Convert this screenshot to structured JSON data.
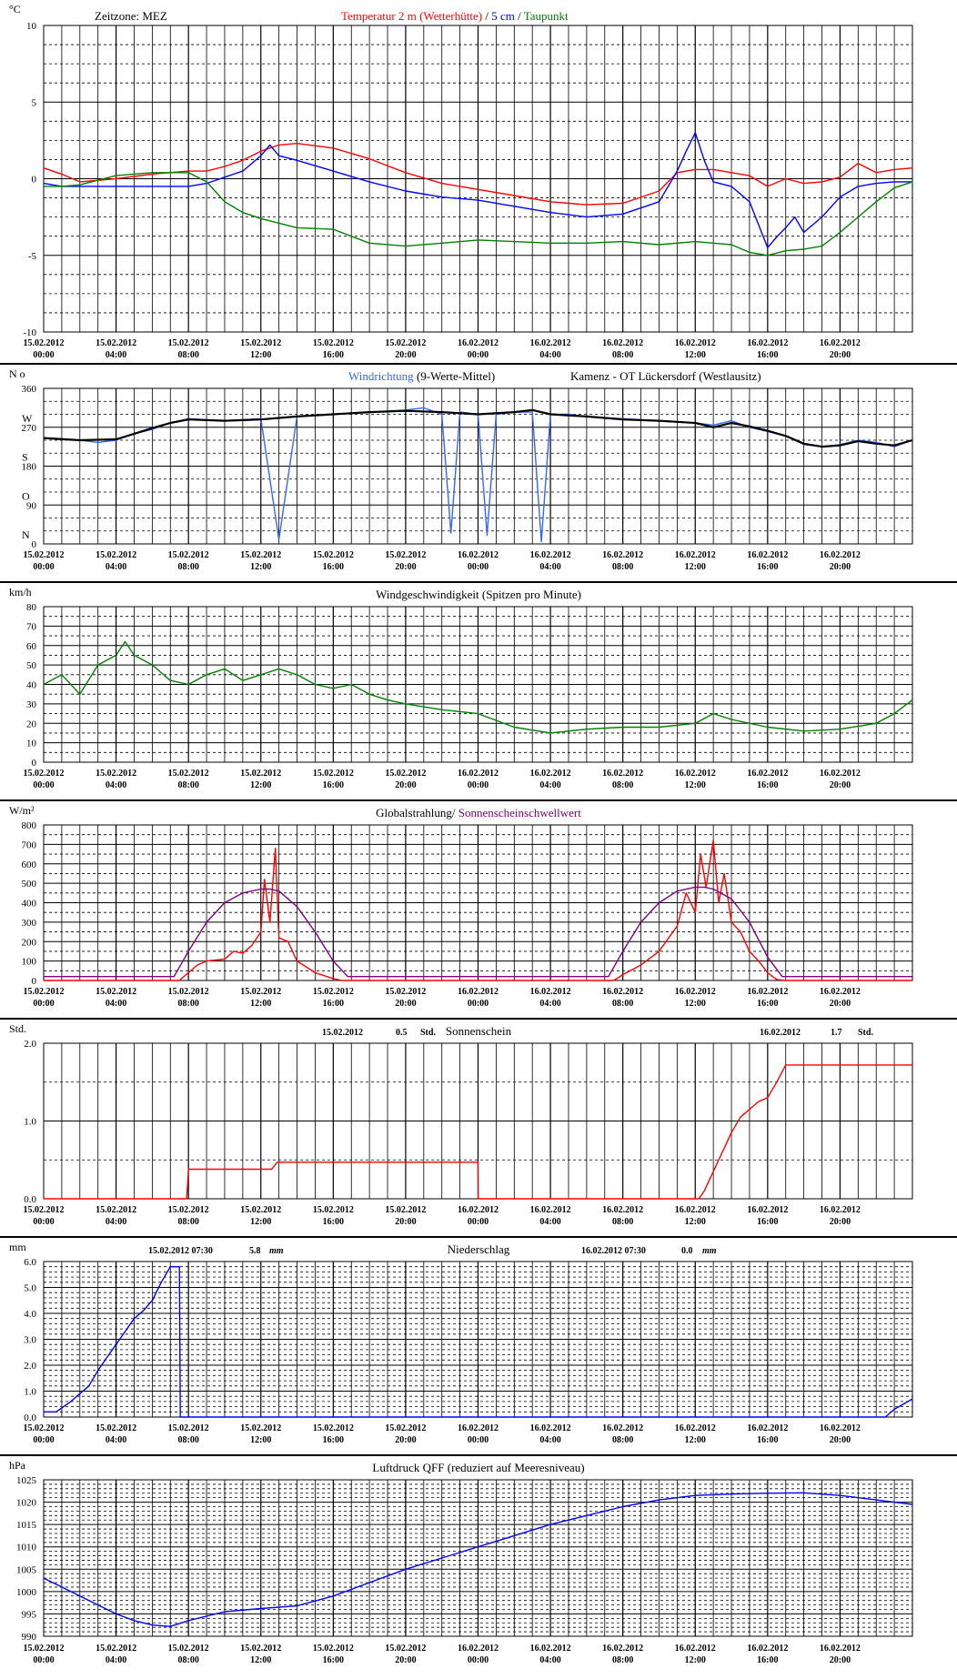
{
  "x_axis": {
    "ticks": [
      {
        "d": "15.02.2012",
        "t": "00:00"
      },
      {
        "d": "15.02.2012",
        "t": "04:00"
      },
      {
        "d": "15.02.2012",
        "t": "08:00"
      },
      {
        "d": "15.02.2012",
        "t": "12:00"
      },
      {
        "d": "15.02.2012",
        "t": "16:00"
      },
      {
        "d": "15.02.2012",
        "t": "20:00"
      },
      {
        "d": "16.02.2012",
        "t": "00:00"
      },
      {
        "d": "16.02.2012",
        "t": "04:00"
      },
      {
        "d": "16.02.2012",
        "t": "08:00"
      },
      {
        "d": "16.02.2012",
        "t": "12:00"
      },
      {
        "d": "16.02.2012",
        "t": "16:00"
      },
      {
        "d": "16.02.2012",
        "t": "20:00"
      }
    ]
  },
  "chart_data": [
    {
      "id": "temperature",
      "type": "line",
      "unit": "°C",
      "header_left": "Zeitzone: MEZ",
      "title_parts": [
        {
          "text": "Temperatur 2 m (Wetterhütte)",
          "color": "#ff0000"
        },
        {
          "text": "  /  ",
          "color": "#000000"
        },
        {
          "text": "5 cm",
          "color": "#0000ff"
        },
        {
          "text": " / ",
          "color": "#000000"
        },
        {
          "text": "Taupunkt",
          "color": "#008000"
        }
      ],
      "ylim": [
        -10,
        10
      ],
      "yticks": [
        10,
        5,
        0,
        -5,
        -10
      ],
      "xlim_hours": [
        0,
        48
      ],
      "series": [
        {
          "name": "Temperatur 2 m (Wetterhütte)",
          "color": "#ff0000",
          "x": [
            0,
            1,
            2,
            4,
            6,
            8,
            9,
            10,
            11,
            12,
            13,
            14,
            16,
            18,
            20,
            22,
            24,
            26,
            28,
            30,
            32,
            34,
            35,
            36,
            37,
            37.5,
            38,
            39,
            40,
            41,
            42,
            43,
            44,
            45,
            46,
            47,
            48
          ],
          "y": [
            0.7,
            0.3,
            -0.2,
            0,
            0.3,
            0.5,
            0.5,
            0.8,
            1.2,
            1.8,
            2.2,
            2.3,
            2.0,
            1.3,
            0.4,
            -0.3,
            -0.7,
            -1.1,
            -1.5,
            -1.7,
            -1.6,
            -0.8,
            0.4,
            0.6,
            0.6,
            0.5,
            0.4,
            0.2,
            -0.5,
            0.0,
            -0.3,
            -0.2,
            0.1,
            1.0,
            0.4,
            0.6,
            0.7
          ]
        },
        {
          "name": "5 cm",
          "color": "#0000ff",
          "x": [
            0,
            1,
            2,
            3,
            4,
            6,
            8,
            9,
            10,
            11,
            12,
            12.5,
            13,
            14,
            16,
            18,
            20,
            22,
            24,
            26,
            28,
            30,
            32,
            34,
            35,
            35.5,
            36,
            36.5,
            37,
            38,
            39,
            39.5,
            40,
            40.5,
            41,
            41.5,
            42,
            43,
            44,
            45,
            46,
            47,
            48
          ],
          "y": [
            -0.3,
            -0.5,
            -0.5,
            -0.5,
            -0.5,
            -0.5,
            -0.5,
            -0.3,
            0.1,
            0.5,
            1.5,
            2.2,
            1.5,
            1.2,
            0.5,
            -0.2,
            -0.8,
            -1.2,
            -1.4,
            -1.8,
            -2.2,
            -2.5,
            -2.3,
            -1.5,
            0.5,
            1.8,
            3.0,
            1.2,
            -0.2,
            -0.5,
            -1.5,
            -3.0,
            -4.5,
            -3.8,
            -3.2,
            -2.5,
            -3.5,
            -2.5,
            -1.2,
            -0.5,
            -0.3,
            -0.2,
            -0.2
          ]
        },
        {
          "name": "Taupunkt",
          "color": "#008000",
          "x": [
            0,
            1,
            2,
            4,
            6,
            8,
            9,
            10,
            11,
            12,
            14,
            16,
            18,
            20,
            22,
            24,
            26,
            28,
            30,
            32,
            34,
            36,
            37,
            38,
            39,
            40,
            41,
            42,
            43,
            44,
            45,
            46,
            47,
            48
          ],
          "y": [
            -0.5,
            -0.5,
            -0.4,
            0.2,
            0.4,
            0.4,
            -0.2,
            -1.5,
            -2.2,
            -2.6,
            -3.2,
            -3.3,
            -4.2,
            -4.4,
            -4.2,
            -4.0,
            -4.1,
            -4.2,
            -4.2,
            -4.1,
            -4.3,
            -4.1,
            -4.2,
            -4.3,
            -4.8,
            -5.0,
            -4.7,
            -4.6,
            -4.4,
            -3.5,
            -2.5,
            -1.5,
            -0.6,
            -0.2
          ]
        }
      ]
    },
    {
      "id": "wind_direction",
      "type": "line",
      "unit": "N  o",
      "title_parts": [
        {
          "text": "Windrichtung",
          "color": "#3366ff"
        },
        {
          "text": " (9-Werte-Mittel)",
          "color": "#000000"
        }
      ],
      "station": "Kamenz - OT Lückersdorf (Westlausitz)",
      "ylim": [
        0,
        360
      ],
      "yticks": [
        360,
        270,
        180,
        90,
        0
      ],
      "compass_labels": [
        {
          "text": "W",
          "value": 270
        },
        {
          "text": "S",
          "value": 180
        },
        {
          "text": "O",
          "value": 90
        },
        {
          "text": "N",
          "value": 0
        }
      ],
      "xlim_hours": [
        0,
        48
      ],
      "series": [
        {
          "name": "Windrichtung",
          "color": "#3366ff",
          "x": [
            0,
            2,
            3,
            4,
            5,
            6,
            7,
            8,
            10,
            12,
            13,
            14,
            16,
            18,
            20,
            21,
            22,
            22.5,
            23,
            24,
            24.5,
            25,
            26,
            27,
            27.5,
            28,
            29,
            30,
            32,
            34,
            36,
            37,
            38,
            39,
            40,
            41,
            42,
            43,
            44,
            45,
            46,
            47,
            48
          ],
          "y": [
            245,
            240,
            235,
            240,
            255,
            265,
            280,
            290,
            285,
            290,
            10,
            295,
            300,
            305,
            310,
            315,
            300,
            25,
            305,
            300,
            20,
            300,
            305,
            305,
            5,
            300,
            300,
            295,
            290,
            285,
            280,
            275,
            285,
            270,
            260,
            250,
            230,
            225,
            230,
            240,
            235,
            225,
            240
          ]
        },
        {
          "name": "9-Werte-Mittel",
          "color": "#000000",
          "x": [
            0,
            2,
            4,
            5,
            6,
            7,
            8,
            10,
            12,
            14,
            16,
            18,
            20,
            22,
            24,
            26,
            27,
            28,
            30,
            32,
            34,
            36,
            37,
            38,
            39,
            40,
            41,
            42,
            43,
            44,
            45,
            46,
            47,
            48
          ],
          "y": [
            245,
            240,
            242,
            255,
            268,
            280,
            288,
            285,
            288,
            295,
            300,
            305,
            308,
            305,
            300,
            305,
            310,
            300,
            295,
            288,
            285,
            280,
            270,
            280,
            272,
            262,
            250,
            232,
            225,
            228,
            238,
            232,
            228,
            240
          ]
        }
      ]
    },
    {
      "id": "wind_speed",
      "type": "line",
      "unit": "km/h",
      "title": "Windgeschwindigkeit (Spitzen pro Minute)",
      "ylim": [
        0,
        80
      ],
      "yticks": [
        80,
        70,
        60,
        50,
        40,
        30,
        20,
        10,
        0
      ],
      "xlim_hours": [
        0,
        48
      ],
      "series": [
        {
          "name": "Windgeschwindigkeit",
          "color": "#008000",
          "x": [
            0,
            1,
            2,
            3,
            4,
            4.5,
            5,
            6,
            7,
            8,
            9,
            10,
            11,
            12,
            13,
            14,
            15,
            16,
            17,
            18,
            19,
            20,
            22,
            24,
            26,
            28,
            30,
            32,
            34,
            36,
            37,
            38,
            40,
            42,
            44,
            46,
            47,
            48
          ],
          "y": [
            40,
            45,
            35,
            50,
            55,
            62,
            55,
            50,
            42,
            40,
            45,
            48,
            42,
            45,
            48,
            45,
            40,
            38,
            40,
            35,
            32,
            30,
            27,
            25,
            18,
            15,
            17,
            18,
            18,
            20,
            25,
            22,
            18,
            16,
            17,
            20,
            25,
            32
          ]
        }
      ]
    },
    {
      "id": "global_radiation",
      "type": "line",
      "unit": "W/m²",
      "title_parts": [
        {
          "text": "Globalstrahlung/ ",
          "color": "#000000"
        },
        {
          "text": "Sonnenscheinschwellwert",
          "color": "#800080"
        }
      ],
      "ylim": [
        0,
        800
      ],
      "yticks": [
        800,
        700,
        600,
        500,
        400,
        300,
        200,
        100,
        0
      ],
      "xlim_hours": [
        0,
        48
      ],
      "series": [
        {
          "name": "Globalstrahlung",
          "color": "#ff0000",
          "x": [
            0,
            7.5,
            8,
            8.5,
            9,
            10,
            10.5,
            11,
            11.5,
            12,
            12.2,
            12.5,
            12.8,
            13,
            13.5,
            14,
            15,
            16,
            16.5,
            17,
            24,
            31.5,
            32,
            33,
            34,
            35,
            35.5,
            36,
            36.3,
            36.6,
            37,
            37.3,
            37.6,
            38,
            38.5,
            39,
            39.5,
            40,
            40.5,
            41,
            48
          ],
          "y": [
            0,
            0,
            40,
            80,
            100,
            110,
            150,
            140,
            180,
            250,
            520,
            300,
            680,
            220,
            200,
            100,
            40,
            10,
            0,
            0,
            0,
            0,
            30,
            80,
            150,
            280,
            450,
            350,
            650,
            480,
            720,
            400,
            550,
            300,
            250,
            150,
            100,
            40,
            5,
            0,
            0
          ]
        },
        {
          "name": "Sonnenscheinschwellwert",
          "color": "#800080",
          "x": [
            0,
            7.2,
            8,
            9,
            10,
            11,
            12,
            12.5,
            13,
            14,
            15,
            16,
            16.8,
            17,
            31.2,
            32,
            33,
            34,
            35,
            36,
            36.5,
            37,
            38,
            39,
            40,
            40.8,
            41,
            48
          ],
          "y": [
            20,
            20,
            150,
            300,
            400,
            450,
            470,
            470,
            460,
            380,
            250,
            100,
            20,
            20,
            20,
            150,
            300,
            400,
            460,
            480,
            480,
            470,
            420,
            300,
            120,
            20,
            20,
            20
          ]
        }
      ]
    },
    {
      "id": "sunshine",
      "type": "line",
      "unit": "Std.",
      "title": "Sonnenschein",
      "summaries": [
        {
          "date": "15.02.2012",
          "value": "0.5",
          "unit": "Std."
        },
        {
          "date": "16.02.2012",
          "value": "1.7",
          "unit": "Std."
        }
      ],
      "ylim": [
        0,
        2
      ],
      "yticks": [
        "2.0",
        "1.0",
        "0.0"
      ],
      "xlim_hours": [
        0,
        48
      ],
      "series": [
        {
          "name": "Sonnenschein",
          "color": "#ff0000",
          "x": [
            0,
            7.9,
            8,
            12.6,
            12.9,
            24,
            24.01,
            36.2,
            36.5,
            37,
            37.5,
            38,
            38.5,
            39,
            39.5,
            40,
            40.5,
            41,
            48
          ],
          "y": [
            0,
            0,
            0.38,
            0.38,
            0.47,
            0.47,
            0,
            0,
            0.1,
            0.35,
            0.6,
            0.85,
            1.05,
            1.15,
            1.25,
            1.3,
            1.5,
            1.72,
            1.72
          ]
        }
      ]
    },
    {
      "id": "precipitation",
      "type": "line",
      "unit": "mm",
      "title": "Niederschlag",
      "summaries": [
        {
          "date": "15.02.2012 07:30",
          "value": "5.8",
          "unit": "mm"
        },
        {
          "date": "16.02.2012 07:30",
          "value": "0.0",
          "unit": "mm"
        }
      ],
      "ylim": [
        0,
        6
      ],
      "yticks": [
        "6.0",
        "5.0",
        "4.0",
        "3.0",
        "2.0",
        "1.0",
        "0.0"
      ],
      "xlim_hours": [
        0,
        48
      ],
      "series": [
        {
          "name": "Niederschlag",
          "color": "#0000ff",
          "x": [
            0,
            0.7,
            1.5,
            2.5,
            3,
            3.5,
            4,
            4.5,
            5,
            5.5,
            6,
            6.5,
            7,
            7.5,
            7.55,
            24,
            46.5,
            47,
            48
          ],
          "y": [
            0.2,
            0.2,
            0.6,
            1.2,
            1.8,
            2.3,
            2.8,
            3.3,
            3.8,
            4.1,
            4.5,
            5.2,
            5.8,
            5.8,
            0,
            0,
            0,
            0.3,
            0.7
          ]
        }
      ]
    },
    {
      "id": "pressure",
      "type": "line",
      "unit": "hPa",
      "title": "Luftdruck QFF (reduziert auf Meeresniveau)",
      "ylim": [
        990,
        1025
      ],
      "yticks": [
        1025,
        1020,
        1015,
        1010,
        1005,
        1000,
        995,
        990
      ],
      "xlim_hours": [
        0,
        48
      ],
      "series": [
        {
          "name": "Luftdruck QFF",
          "color": "#0000ff",
          "x": [
            0,
            1,
            2,
            3,
            4,
            5,
            6,
            7,
            8,
            10,
            12,
            14,
            16,
            18,
            20,
            22,
            24,
            26,
            28,
            30,
            32,
            34,
            36,
            38,
            40,
            42,
            44,
            46,
            48
          ],
          "y": [
            1003,
            1001,
            999,
            997,
            995,
            993.5,
            992.5,
            992.2,
            993.5,
            995.5,
            996.2,
            996.8,
            999,
            1002,
            1005,
            1007.5,
            1010,
            1012.5,
            1015,
            1017,
            1019,
            1020.5,
            1021.5,
            1021.8,
            1022,
            1022.1,
            1021.5,
            1020.5,
            1019.5
          ]
        }
      ]
    }
  ]
}
